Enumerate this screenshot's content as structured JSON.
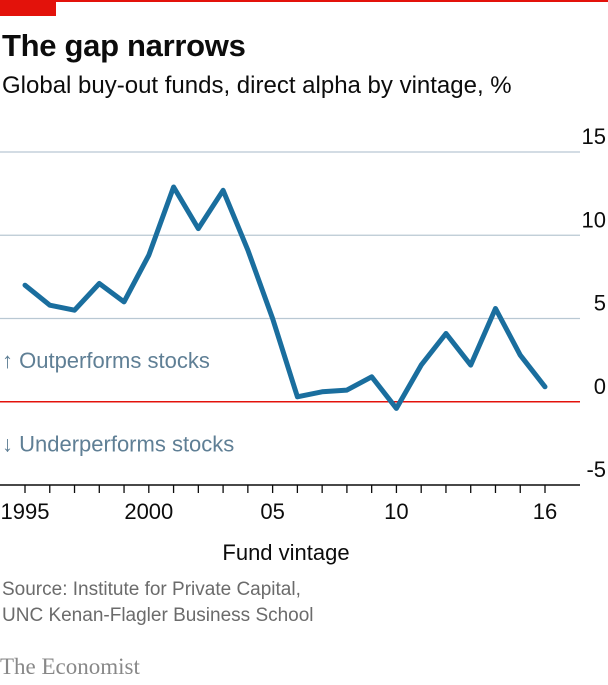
{
  "title": "The gap narrows",
  "subtitle": "Global buy-out funds, direct alpha by vintage, %",
  "source_lines": [
    "Source: Institute for Private Capital,",
    "UNC Kenan-Flagler Business School"
  ],
  "brand": "The Economist",
  "colors": {
    "accent": "#e3120b",
    "line": "#1a6e9e",
    "grid": "#b9c8d3",
    "annotation": "#5f7f95",
    "zero": "#e3120b"
  },
  "chart_data": {
    "type": "line",
    "xlabel": "Fund vintage",
    "ylabel": "",
    "ylim": [
      -5,
      15
    ],
    "xlim": [
      1995,
      2016
    ],
    "grid": true,
    "y_ticks": [
      15,
      10,
      5,
      0,
      -5
    ],
    "y_tick_labels": [
      "15",
      "10",
      "5",
      "0",
      "-5"
    ],
    "x_ticks": [
      1995,
      2000,
      2005,
      2010,
      2016
    ],
    "x_tick_labels": [
      "1995",
      "2000",
      "05",
      "10",
      "16"
    ],
    "annotations": [
      {
        "text": "↑ Outperforms stocks",
        "y": 2.5
      },
      {
        "text": "↓ Underperforms stocks",
        "y": -2.5
      }
    ],
    "series": [
      {
        "x": [
          1995,
          1996,
          1997,
          1998,
          1999,
          2000,
          2001,
          2002,
          2003,
          2004,
          2005,
          2006,
          2007,
          2008,
          2009,
          2010,
          2011,
          2012,
          2013,
          2014,
          2015,
          2016
        ],
        "values": [
          7.0,
          5.8,
          5.5,
          7.1,
          6.0,
          8.8,
          12.9,
          10.4,
          12.7,
          9.1,
          5.0,
          0.3,
          0.6,
          0.7,
          1.5,
          -0.4,
          2.2,
          4.1,
          2.2,
          5.6,
          2.8,
          0.9
        ]
      }
    ]
  }
}
